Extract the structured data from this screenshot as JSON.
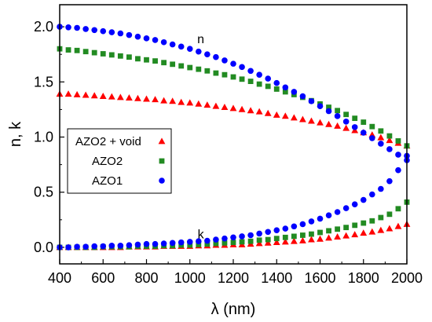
{
  "chart_data": {
    "type": "scatter",
    "title": "",
    "xlabel": "λ (nm)",
    "ylabel": "n, k",
    "xlim": [
      400,
      2000
    ],
    "ylim": [
      -0.15,
      2.2
    ],
    "x_ticks": [
      "400",
      "600",
      "800",
      "1000",
      "1200",
      "1400",
      "1600",
      "1800",
      "2000"
    ],
    "y_ticks": [
      "0.0",
      "0.5",
      "1.0",
      "1.5",
      "2.0"
    ],
    "grid": false,
    "legend_position": "center-left",
    "annotations": [
      {
        "text": "n",
        "x": 1050,
        "y": 1.85
      },
      {
        "text": "k",
        "x": 1050,
        "y": 0.08
      }
    ],
    "x": [
      400,
      440,
      480,
      520,
      560,
      600,
      640,
      680,
      720,
      760,
      800,
      840,
      880,
      920,
      960,
      1000,
      1040,
      1080,
      1120,
      1160,
      1200,
      1240,
      1280,
      1320,
      1360,
      1400,
      1440,
      1480,
      1520,
      1560,
      1600,
      1640,
      1680,
      1720,
      1760,
      1800,
      1840,
      1880,
      1920,
      1960,
      2000
    ],
    "series": [
      {
        "name": "AZO2 + void",
        "color": "#ff0000",
        "marker": "triangle",
        "n": [
          1.39,
          1.39,
          1.385,
          1.38,
          1.375,
          1.37,
          1.365,
          1.36,
          1.355,
          1.35,
          1.345,
          1.34,
          1.33,
          1.325,
          1.315,
          1.31,
          1.3,
          1.29,
          1.28,
          1.27,
          1.26,
          1.25,
          1.24,
          1.23,
          1.215,
          1.2,
          1.19,
          1.175,
          1.16,
          1.145,
          1.13,
          1.115,
          1.1,
          1.08,
          1.06,
          1.04,
          1.02,
          0.995,
          0.97,
          0.945,
          0.92
        ],
        "k": [
          0.0,
          0.0,
          0.0,
          0.0,
          0.0,
          0.0,
          0.0,
          0.0,
          0.005,
          0.005,
          0.005,
          0.005,
          0.01,
          0.01,
          0.01,
          0.01,
          0.015,
          0.015,
          0.02,
          0.02,
          0.025,
          0.025,
          0.03,
          0.035,
          0.04,
          0.045,
          0.05,
          0.055,
          0.06,
          0.07,
          0.075,
          0.085,
          0.095,
          0.105,
          0.115,
          0.13,
          0.14,
          0.155,
          0.17,
          0.19,
          0.21
        ]
      },
      {
        "name": "AZO2",
        "color": "#228b22",
        "marker": "square",
        "n": [
          1.8,
          1.79,
          1.785,
          1.775,
          1.765,
          1.755,
          1.745,
          1.735,
          1.725,
          1.71,
          1.7,
          1.69,
          1.675,
          1.66,
          1.645,
          1.63,
          1.615,
          1.6,
          1.58,
          1.565,
          1.545,
          1.525,
          1.505,
          1.48,
          1.46,
          1.435,
          1.41,
          1.385,
          1.36,
          1.33,
          1.3,
          1.27,
          1.24,
          1.205,
          1.17,
          1.135,
          1.095,
          1.055,
          1.01,
          0.965,
          0.92
        ],
        "k": [
          0.0,
          0.0,
          0.0,
          0.0,
          0.0,
          0.005,
          0.005,
          0.005,
          0.005,
          0.01,
          0.01,
          0.01,
          0.015,
          0.015,
          0.02,
          0.02,
          0.025,
          0.03,
          0.035,
          0.04,
          0.045,
          0.05,
          0.055,
          0.065,
          0.07,
          0.08,
          0.09,
          0.1,
          0.11,
          0.12,
          0.135,
          0.15,
          0.165,
          0.18,
          0.2,
          0.22,
          0.24,
          0.27,
          0.3,
          0.35,
          0.41
        ]
      },
      {
        "name": "AZO1",
        "color": "#0000ff",
        "marker": "circle",
        "n": [
          2.0,
          1.995,
          1.99,
          1.98,
          1.97,
          1.96,
          1.95,
          1.94,
          1.925,
          1.91,
          1.895,
          1.88,
          1.86,
          1.84,
          1.82,
          1.8,
          1.775,
          1.75,
          1.725,
          1.695,
          1.665,
          1.635,
          1.6,
          1.565,
          1.53,
          1.49,
          1.45,
          1.41,
          1.37,
          1.325,
          1.28,
          1.235,
          1.19,
          1.14,
          1.09,
          1.04,
          0.99,
          0.94,
          0.89,
          0.84,
          0.79
        ],
        "k": [
          0.0,
          0.0,
          0.005,
          0.005,
          0.01,
          0.01,
          0.015,
          0.015,
          0.02,
          0.025,
          0.03,
          0.03,
          0.035,
          0.04,
          0.045,
          0.05,
          0.055,
          0.06,
          0.07,
          0.08,
          0.09,
          0.1,
          0.11,
          0.125,
          0.14,
          0.155,
          0.17,
          0.19,
          0.21,
          0.235,
          0.26,
          0.29,
          0.32,
          0.355,
          0.39,
          0.43,
          0.48,
          0.53,
          0.6,
          0.7,
          0.83
        ]
      }
    ]
  }
}
